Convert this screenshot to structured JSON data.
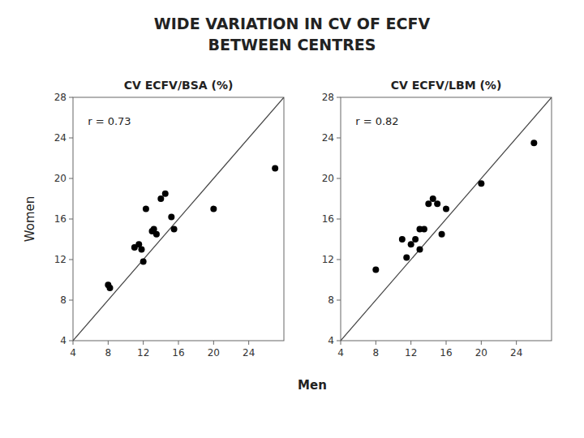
{
  "title": "WIDE VARIATION IN CV OF ECFV",
  "subtitle": "BETWEEN CENTRES",
  "xlabel": "Men",
  "chart_data": [
    {
      "type": "scatter",
      "title": "CV ECFV/BSA (%)",
      "ylabel": "Women",
      "annotations": [
        "r = 0.73"
      ],
      "x": [
        8.0,
        8.2,
        11.0,
        11.5,
        11.8,
        12.0,
        12.3,
        13.0,
        13.2,
        13.5,
        14.0,
        14.5,
        15.2,
        15.5,
        20.0,
        27.0
      ],
      "values": [
        9.5,
        9.2,
        13.2,
        13.5,
        13.0,
        11.8,
        17.0,
        14.8,
        15.0,
        14.5,
        18.0,
        18.5,
        16.2,
        15.0,
        17.0,
        21.0
      ],
      "color": "#000000",
      "xlim": [
        4,
        28
      ],
      "ylim": [
        4,
        28
      ],
      "xticks": [
        4,
        8,
        12,
        16,
        20,
        24
      ],
      "yticks": [
        4,
        8,
        12,
        16,
        20,
        24,
        28
      ],
      "grid": false
    },
    {
      "type": "scatter",
      "title": "CV ECFV/LBM (%)",
      "annotations": [
        "r = 0.82"
      ],
      "x": [
        8.0,
        11.0,
        11.5,
        12.0,
        12.5,
        13.0,
        13.0,
        13.5,
        14.0,
        14.5,
        15.0,
        15.5,
        16.0,
        20.0,
        26.0
      ],
      "values": [
        11.0,
        14.0,
        12.2,
        13.5,
        14.0,
        15.0,
        13.0,
        15.0,
        17.5,
        18.0,
        17.5,
        14.5,
        17.0,
        19.5,
        23.5
      ],
      "color": "#000000",
      "xlim": [
        4,
        28
      ],
      "ylim": [
        4,
        28
      ],
      "xticks": [
        4,
        8,
        12,
        16,
        20,
        24
      ],
      "yticks": [
        4,
        8,
        12,
        16,
        20,
        24,
        28
      ],
      "grid": false
    }
  ]
}
